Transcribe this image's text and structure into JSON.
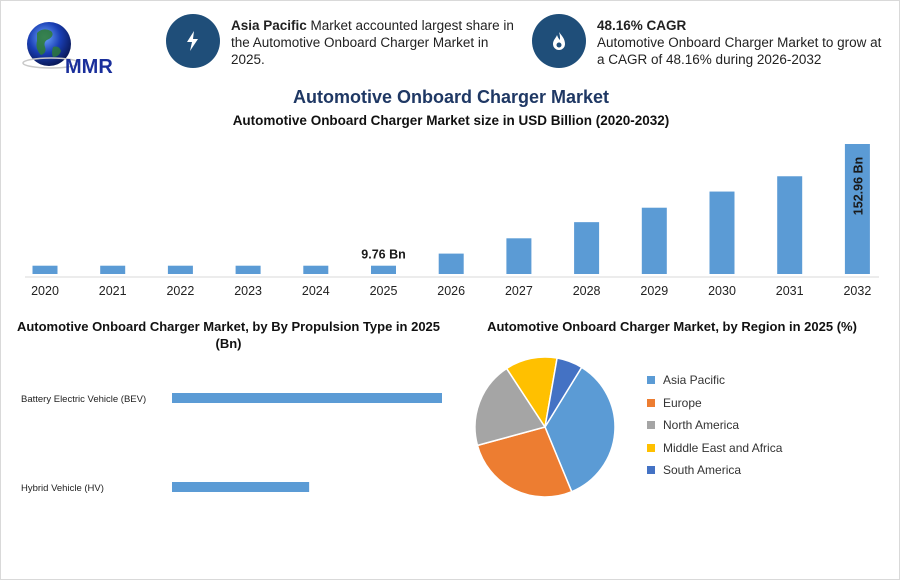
{
  "logo": {
    "text": "MMR"
  },
  "highlights": [
    {
      "icon": "lightning-icon",
      "bold": "Asia Pacific",
      "text": " Market accounted largest share in the Automotive Onboard Charger Market in 2025."
    },
    {
      "icon": "flame-icon",
      "bold": "48.16% CAGR",
      "text": "Automotive Onboard Charger Market to grow at a CAGR of 48.16% during 2026-2032"
    }
  ],
  "colors": {
    "bar": "#5b9bd5",
    "accent": "#1f4e79",
    "title": "#1f3864"
  },
  "chart_data": [
    {
      "type": "bar",
      "title": "Automotive Onboard Charger Market",
      "subtitle": "Automotive Onboard Charger Market size in USD Billion (2020-2032)",
      "categories": [
        "2020",
        "2021",
        "2022",
        "2023",
        "2024",
        "2025",
        "2026",
        "2027",
        "2028",
        "2029",
        "2030",
        "2031",
        "2032"
      ],
      "values": [
        9.76,
        9.76,
        9.76,
        9.76,
        9.76,
        9.76,
        24.0,
        42.0,
        61.0,
        78.0,
        97.0,
        115.0,
        152.96
      ],
      "data_labels": [
        {
          "index": 5,
          "text": "9.76 Bn",
          "orientation": "horizontal"
        },
        {
          "index": 12,
          "text": "152.96 Bn",
          "orientation": "vertical"
        }
      ],
      "ylim": [
        0,
        152.96
      ]
    },
    {
      "type": "bar",
      "orientation": "horizontal",
      "title": "Automotive Onboard Charger Market, by By Propulsion Type in 2025 (Bn)",
      "categories": [
        "Battery Electric Vehicle (BEV)",
        "Hybrid Vehicle (HV)"
      ],
      "values": [
        6.3,
        3.2
      ],
      "xlim": [
        0,
        6.3
      ]
    },
    {
      "type": "pie",
      "title": "Automotive Onboard Charger Market, by Region in 2025 (%)",
      "categories": [
        "Asia Pacific",
        "Europe",
        "North America",
        "Middle East and Africa",
        "South America"
      ],
      "values": [
        35,
        27,
        20,
        12,
        6
      ],
      "colors": [
        "#5b9bd5",
        "#ed7d31",
        "#a5a5a5",
        "#ffc000",
        "#4472c4"
      ]
    }
  ]
}
